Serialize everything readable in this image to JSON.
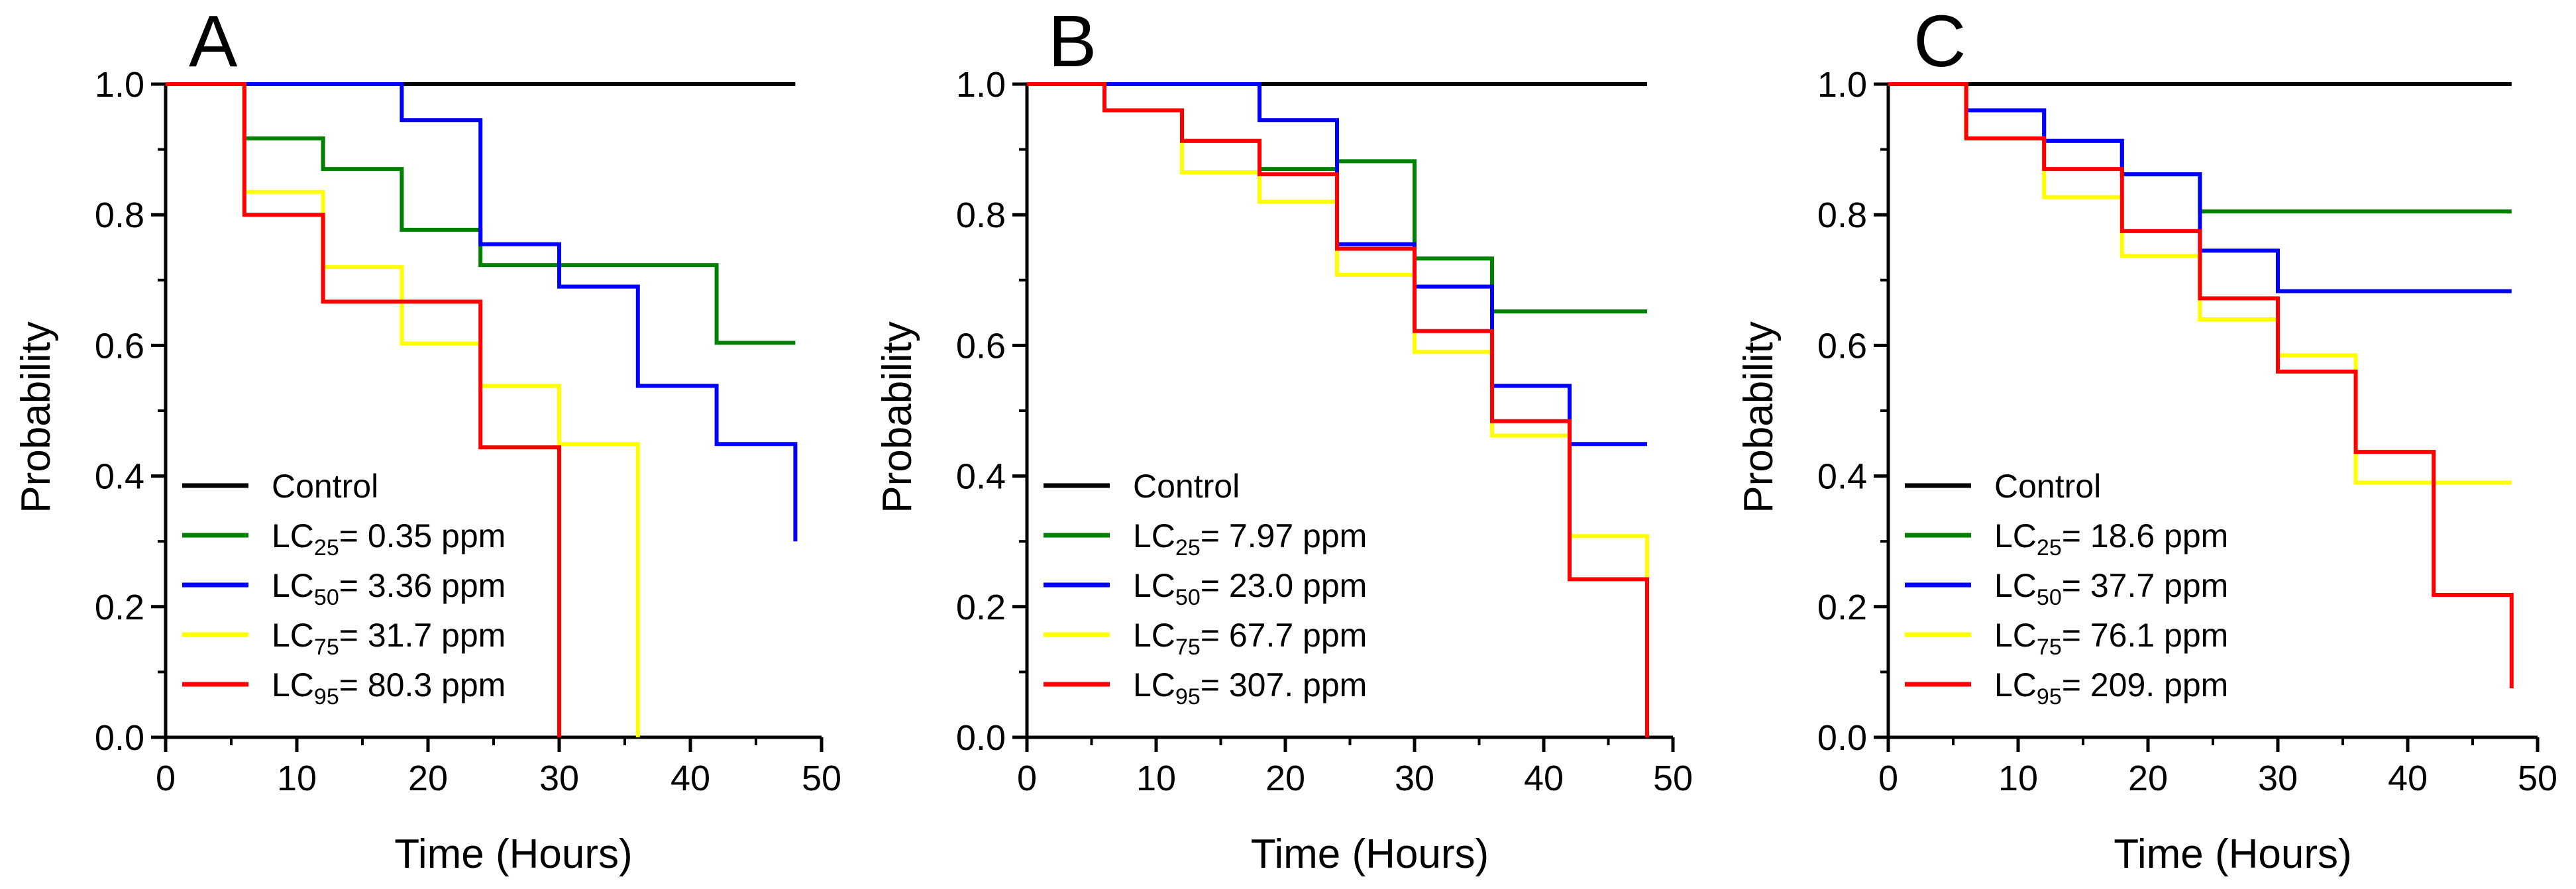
{
  "colors": {
    "Control": "#000000",
    "LC25": "#008000",
    "LC50": "#0000ff",
    "LC75": "#ffff00",
    "LC95": "#ff0000"
  },
  "chart_data": [
    {
      "type": "line",
      "subtype": "step",
      "panel": "A",
      "xlabel": "Time (Hours)",
      "ylabel": "Probability",
      "xlim": [
        0,
        50
      ],
      "ylim": [
        0,
        1.0
      ],
      "xticks": [
        "0",
        "10",
        "20",
        "30",
        "40",
        "50"
      ],
      "yticks": [
        "0.0",
        "0.2",
        "0.4",
        "0.6",
        "0.8",
        "1.0"
      ],
      "legend_position": "bottom-left",
      "series": [
        {
          "name": "Control",
          "label_prefix": "Control",
          "label_sub": "",
          "label_value": "",
          "color_key": "Control",
          "x": [
            0,
            48
          ],
          "y": [
            1.0,
            1.0
          ]
        },
        {
          "name": "LC25",
          "label_prefix": "LC",
          "label_sub": "25",
          "label_value": "= 0.35 ppm",
          "color_key": "LC25",
          "x": [
            0,
            6,
            12,
            18,
            24,
            42,
            48
          ],
          "y": [
            1.0,
            0.917,
            0.87,
            0.777,
            0.723,
            0.604,
            0.604
          ]
        },
        {
          "name": "LC50",
          "label_prefix": "LC",
          "label_sub": "50",
          "label_value": "= 3.36 ppm",
          "color_key": "LC50",
          "x": [
            0,
            18,
            24,
            30,
            36,
            42,
            48
          ],
          "y": [
            1.0,
            0.945,
            0.755,
            0.69,
            0.538,
            0.449,
            0.3
          ]
        },
        {
          "name": "LC75",
          "label_prefix": "LC",
          "label_sub": "75",
          "label_value": "= 31.7 ppm",
          "color_key": "LC75",
          "x": [
            0,
            6,
            12,
            18,
            24,
            30,
            36
          ],
          "y": [
            1.0,
            0.835,
            0.72,
            0.603,
            0.538,
            0.449,
            0.0
          ]
        },
        {
          "name": "LC95",
          "label_prefix": "LC",
          "label_sub": "95",
          "label_value": "= 80.3 ppm",
          "color_key": "LC95",
          "x": [
            0,
            6,
            12,
            24,
            30
          ],
          "y": [
            1.0,
            0.8,
            0.667,
            0.444,
            0.0
          ]
        }
      ]
    },
    {
      "type": "line",
      "subtype": "step",
      "panel": "B",
      "xlabel": "Time (Hours)",
      "ylabel": "Probability",
      "xlim": [
        0,
        50
      ],
      "ylim": [
        0,
        1.0
      ],
      "xticks": [
        "0",
        "10",
        "20",
        "30",
        "40",
        "50"
      ],
      "yticks": [
        "0.0",
        "0.2",
        "0.4",
        "0.6",
        "0.8",
        "1.0"
      ],
      "legend_position": "bottom-left",
      "series": [
        {
          "name": "Control",
          "label_prefix": "Control",
          "label_sub": "",
          "label_value": "",
          "color_key": "Control",
          "x": [
            0,
            48
          ],
          "y": [
            1.0,
            1.0
          ]
        },
        {
          "name": "LC25",
          "label_prefix": "LC",
          "label_sub": "25",
          "label_value": "= 7.97 ppm",
          "color_key": "LC25",
          "x": [
            0,
            6,
            12,
            18,
            24,
            30,
            36,
            48
          ],
          "y": [
            1.0,
            0.96,
            0.913,
            0.87,
            0.882,
            0.733,
            0.652,
            0.652
          ]
        },
        {
          "name": "LC50",
          "label_prefix": "LC",
          "label_sub": "50",
          "label_value": "= 23.0 ppm",
          "color_key": "LC50",
          "x": [
            0,
            18,
            24,
            30,
            36,
            42,
            48
          ],
          "y": [
            1.0,
            0.945,
            0.755,
            0.69,
            0.538,
            0.449,
            0.449
          ]
        },
        {
          "name": "LC75",
          "label_prefix": "LC",
          "label_sub": "75",
          "label_value": "= 67.7 ppm",
          "color_key": "LC75",
          "x": [
            0,
            6,
            12,
            18,
            24,
            30,
            36,
            42,
            48
          ],
          "y": [
            1.0,
            0.96,
            0.865,
            0.82,
            0.708,
            0.59,
            0.462,
            0.308,
            0.0
          ]
        },
        {
          "name": "LC95",
          "label_prefix": "LC",
          "label_sub": "95",
          "label_value": "= 307. ppm",
          "color_key": "LC95",
          "x": [
            0,
            6,
            12,
            18,
            24,
            30,
            36,
            42,
            48
          ],
          "y": [
            1.0,
            0.96,
            0.913,
            0.862,
            0.748,
            0.622,
            0.484,
            0.242,
            0.0
          ]
        }
      ]
    },
    {
      "type": "line",
      "subtype": "step",
      "panel": "C",
      "xlabel": "Time (Hours)",
      "ylabel": "Probability",
      "xlim": [
        0,
        50
      ],
      "ylim": [
        0,
        1.0
      ],
      "xticks": [
        "0",
        "10",
        "20",
        "30",
        "40",
        "50"
      ],
      "yticks": [
        "0.0",
        "0.2",
        "0.4",
        "0.6",
        "0.8",
        "1.0"
      ],
      "legend_position": "bottom-left",
      "series": [
        {
          "name": "Control",
          "label_prefix": "Control",
          "label_sub": "",
          "label_value": "",
          "color_key": "Control",
          "x": [
            0,
            48
          ],
          "y": [
            1.0,
            1.0
          ]
        },
        {
          "name": "LC25",
          "label_prefix": "LC",
          "label_sub": "25",
          "label_value": "= 18.6 ppm",
          "color_key": "LC25",
          "x": [
            0,
            6,
            12,
            18,
            24,
            48
          ],
          "y": [
            1.0,
            0.96,
            0.913,
            0.862,
            0.805,
            0.805
          ]
        },
        {
          "name": "LC50",
          "label_prefix": "LC",
          "label_sub": "50",
          "label_value": "= 37.7 ppm",
          "color_key": "LC50",
          "x": [
            0,
            6,
            12,
            18,
            24,
            30,
            48
          ],
          "y": [
            1.0,
            0.96,
            0.913,
            0.862,
            0.745,
            0.683,
            0.683
          ]
        },
        {
          "name": "LC75",
          "label_prefix": "LC",
          "label_sub": "75",
          "label_value": "= 76.1 ppm",
          "color_key": "LC75",
          "x": [
            0,
            6,
            12,
            18,
            24,
            30,
            36,
            48
          ],
          "y": [
            1.0,
            0.917,
            0.827,
            0.737,
            0.64,
            0.585,
            0.39,
            0.39
          ]
        },
        {
          "name": "LC95",
          "label_prefix": "LC",
          "label_sub": "95",
          "label_value": "= 209. ppm",
          "color_key": "LC95",
          "x": [
            0,
            6,
            12,
            18,
            24,
            30,
            36,
            42,
            48
          ],
          "y": [
            1.0,
            0.917,
            0.87,
            0.775,
            0.672,
            0.56,
            0.437,
            0.218,
            0.075
          ]
        }
      ]
    }
  ]
}
